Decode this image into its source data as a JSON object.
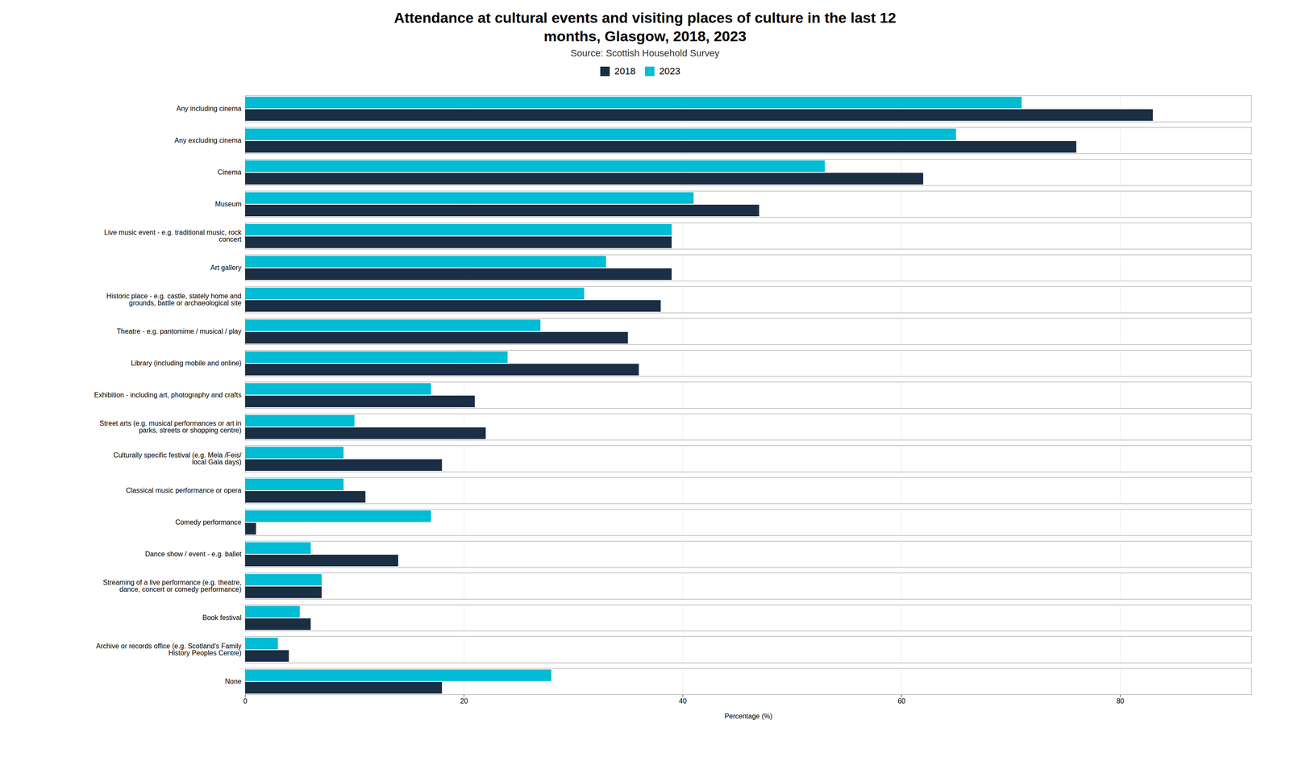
{
  "chart_data": {
    "type": "bar",
    "orientation": "horizontal",
    "title": "Attendance at cultural events and visiting places of culture in the last 12\nmonths, Glasgow, 2018, 2023",
    "subtitle": "Source: Scottish Household Survey",
    "categories": [
      "Any including cinema",
      "Any excluding cinema",
      "Cinema",
      "Museum",
      "Live music event - e.g. traditional music, rock\nconcert",
      "Art gallery",
      "Historic place - e.g. castle, stately home and\ngrounds, battle or archaeological site",
      "Theatre - e.g. pantomime / musical / play",
      "Library (including mobile and online)",
      "Exhibition - including art, photography and crafts",
      "Street arts (e.g. musical performances or art in\nparks, streets or shopping centre)",
      "Culturally specific festival (e.g. Mela /Feis/\nlocal Gala days)",
      "Classical music performance or opera",
      "Comedy performance",
      "Dance show / event - e.g. ballet",
      "Streaming of a live performance (e.g. theatre,\ndance, concert or comedy performance)",
      "Book festival",
      "Archive or records office (e.g. Scotland's Family\nHistory Peoples Centre)",
      "None"
    ],
    "series": [
      {
        "name": "2018",
        "color": "#1a2e44",
        "values": [
          83,
          76,
          62,
          47,
          39,
          39,
          38,
          35,
          36,
          21,
          22,
          18,
          11,
          1,
          14,
          7,
          6,
          4,
          18
        ]
      },
      {
        "name": "2023",
        "color": "#00bcd4",
        "values": [
          71,
          65,
          53,
          41,
          39,
          33,
          31,
          27,
          24,
          17,
          10,
          9,
          9,
          17,
          6,
          7,
          5,
          3,
          28
        ]
      }
    ],
    "xlabel": "Percentage (%)",
    "xlim": [
      0,
      92
    ],
    "xticks": [
      0,
      20,
      40,
      60,
      80
    ],
    "grid": true,
    "legend": "top"
  }
}
